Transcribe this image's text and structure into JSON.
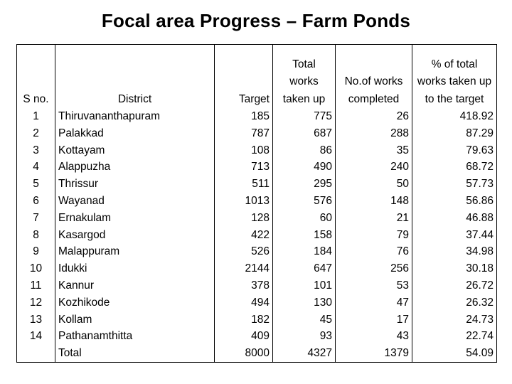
{
  "title": "Focal area Progress – Farm Ponds",
  "headers": {
    "sno": "S no.",
    "district": "District",
    "target": "Target",
    "total_works": [
      "Total",
      "works",
      "taken up"
    ],
    "completed": [
      "No.of works",
      "completed"
    ],
    "percent": [
      "% of total",
      "works taken up",
      "to the target"
    ]
  },
  "rows": [
    {
      "sno": "1",
      "district": "Thiruvananthapuram",
      "target": "185",
      "total": "775",
      "completed": "26",
      "percent": "418.92"
    },
    {
      "sno": "2",
      "district": "Palakkad",
      "target": "787",
      "total": "687",
      "completed": "288",
      "percent": "87.29"
    },
    {
      "sno": "3",
      "district": "Kottayam",
      "target": "108",
      "total": "86",
      "completed": "35",
      "percent": "79.63"
    },
    {
      "sno": "4",
      "district": "Alappuzha",
      "target": "713",
      "total": "490",
      "completed": "240",
      "percent": "68.72"
    },
    {
      "sno": "5",
      "district": "Thrissur",
      "target": "511",
      "total": "295",
      "completed": "50",
      "percent": "57.73"
    },
    {
      "sno": "6",
      "district": "Wayanad",
      "target": "1013",
      "total": "576",
      "completed": "148",
      "percent": "56.86"
    },
    {
      "sno": "7",
      "district": "Ernakulam",
      "target": "128",
      "total": "60",
      "completed": "21",
      "percent": "46.88"
    },
    {
      "sno": "8",
      "district": "Kasargod",
      "target": "422",
      "total": "158",
      "completed": "79",
      "percent": "37.44"
    },
    {
      "sno": "9",
      "district": "Malappuram",
      "target": "526",
      "total": "184",
      "completed": "76",
      "percent": "34.98"
    },
    {
      "sno": "10",
      "district": "Idukki",
      "target": "2144",
      "total": "647",
      "completed": "256",
      "percent": "30.18"
    },
    {
      "sno": "11",
      "district": "Kannur",
      "target": "378",
      "total": "101",
      "completed": "53",
      "percent": "26.72"
    },
    {
      "sno": "12",
      "district": "Kozhikode",
      "target": "494",
      "total": "130",
      "completed": "47",
      "percent": "26.32"
    },
    {
      "sno": "13",
      "district": "Kollam",
      "target": "182",
      "total": "45",
      "completed": "17",
      "percent": "24.73"
    },
    {
      "sno": "14",
      "district": "Pathanamthitta",
      "target": "409",
      "total": "93",
      "completed": "43",
      "percent": "22.74"
    },
    {
      "sno": "",
      "district": "Total",
      "target": "8000",
      "total": "4327",
      "completed": "1379",
      "percent": "54.09"
    }
  ]
}
